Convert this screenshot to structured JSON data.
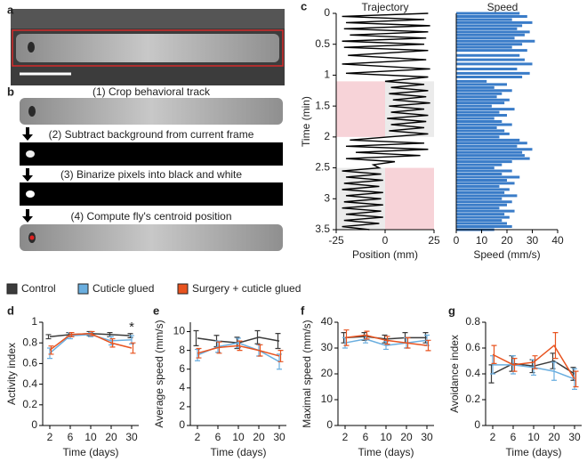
{
  "panel_labels": [
    "a",
    "b",
    "c",
    "d",
    "e",
    "f",
    "g"
  ],
  "steps": [
    "(1) Crop behavioral track",
    "(2) Subtract background from current frame",
    "(3) Binarize pixels into black and white",
    "(4) Compute fly's centroid position"
  ],
  "legend": [
    {
      "name": "Control",
      "color": "#3b3b3b"
    },
    {
      "name": "Cuticle glued",
      "color": "#6aaedf"
    },
    {
      "name": "Surgery + cuticle glued",
      "color": "#e8531f"
    }
  ],
  "chart_data": [
    {
      "type": "trajectory",
      "title": "Trajectory",
      "xlabel": "Position (mm)",
      "ylabel": "Time (min)",
      "color": "#000000",
      "xlim": [
        -25,
        25
      ],
      "xticks": [
        -25,
        0,
        25
      ],
      "ylim": [
        0,
        3.5
      ],
      "yticks": [
        0,
        0.5,
        1,
        1.5,
        2,
        2.5,
        3,
        3.5
      ],
      "shading": [
        {
          "y": [
            1.1,
            2.0
          ],
          "x": [
            -25,
            0
          ],
          "color": "#f7d3d8"
        },
        {
          "y": [
            1.1,
            2.0
          ],
          "x": [
            0,
            25
          ],
          "color": "#ebebeb"
        },
        {
          "y": [
            2.5,
            3.5
          ],
          "x": [
            -25,
            0
          ],
          "color": "#ebebeb"
        },
        {
          "y": [
            2.5,
            3.5
          ],
          "x": [
            0,
            25
          ],
          "color": "#f7d3d8"
        }
      ],
      "y": [
        0,
        0.05,
        0.1,
        0.15,
        0.2,
        0.25,
        0.3,
        0.35,
        0.4,
        0.45,
        0.5,
        0.55,
        0.6,
        0.68,
        0.75,
        0.82,
        0.9,
        0.97,
        1.03,
        1.1,
        1.15,
        1.2,
        1.25,
        1.3,
        1.35,
        1.4,
        1.45,
        1.5,
        1.55,
        1.6,
        1.65,
        1.7,
        1.75,
        1.8,
        1.85,
        1.9,
        1.95,
        2.0,
        2.05,
        2.1,
        2.15,
        2.2,
        2.25,
        2.3,
        2.35,
        2.4,
        2.45,
        2.5,
        2.55,
        2.6,
        2.65,
        2.7,
        2.75,
        2.8,
        2.85,
        2.9,
        2.95,
        3.0,
        3.05,
        3.1,
        3.15,
        3.2,
        3.25,
        3.3,
        3.35,
        3.4,
        3.45,
        3.5
      ],
      "x": [
        22,
        -22,
        20,
        -20,
        23,
        -21,
        22,
        -18,
        21,
        -22,
        20,
        -21,
        22,
        -19,
        21,
        -22,
        23,
        -20,
        22,
        0,
        20,
        3,
        22,
        2,
        21,
        4,
        23,
        2,
        20,
        3,
        22,
        1,
        21,
        3,
        20,
        2,
        22,
        2,
        -18,
        20,
        -20,
        22,
        -15,
        18,
        -20,
        5,
        -6,
        -3,
        -22,
        -2,
        -20,
        -1,
        -21,
        -3,
        -22,
        -1,
        -20,
        -2,
        -21,
        -1,
        -22,
        -2,
        -20,
        -1,
        -21,
        -3,
        -22,
        -8
      ]
    },
    {
      "type": "hbar",
      "title": "Speed",
      "xlabel": "Speed (mm/s)",
      "color": "#3a7cc8",
      "xlim": [
        0,
        40
      ],
      "xticks": [
        0,
        10,
        20,
        30,
        40
      ],
      "values": [
        25,
        28,
        22,
        30,
        26,
        24,
        29,
        27,
        23,
        31,
        26,
        22,
        28,
        25,
        27,
        30,
        24,
        29,
        26,
        12,
        20,
        15,
        22,
        18,
        16,
        21,
        19,
        14,
        23,
        17,
        20,
        15,
        18,
        22,
        16,
        19,
        21,
        17,
        25,
        28,
        24,
        30,
        26,
        27,
        29,
        22,
        18,
        15,
        22,
        18,
        25,
        20,
        23,
        17,
        21,
        19,
        24,
        18,
        22,
        20,
        17,
        23,
        19,
        21,
        18,
        20,
        22,
        15
      ]
    },
    {
      "type": "line",
      "ylabel": "Activity index",
      "xlabel": "Time (days)",
      "categories": [
        2,
        6,
        10,
        20,
        30
      ],
      "annotation": "*",
      "ylim": [
        0,
        1
      ],
      "yticks": [
        0,
        0.2,
        0.4,
        0.6,
        0.8,
        1
      ],
      "series": [
        {
          "values": [
            0.86,
            0.88,
            0.89,
            0.88,
            0.87
          ],
          "errors": [
            0.02,
            0.02,
            0.02,
            0.02,
            0.02
          ]
        },
        {
          "values": [
            0.7,
            0.87,
            0.88,
            0.82,
            0.83
          ],
          "errors": [
            0.05,
            0.03,
            0.02,
            0.04,
            0.04
          ]
        },
        {
          "values": [
            0.73,
            0.88,
            0.89,
            0.8,
            0.75
          ],
          "errors": [
            0.04,
            0.02,
            0.02,
            0.04,
            0.05
          ]
        }
      ]
    },
    {
      "type": "line",
      "ylabel": "Average speed (mm/s)",
      "xlabel": "Time (days)",
      "categories": [
        2,
        6,
        10,
        20,
        30
      ],
      "ylim": [
        0,
        11
      ],
      "yticks": [
        0,
        2,
        4,
        6,
        8,
        10
      ],
      "series": [
        {
          "values": [
            9.3,
            9.0,
            8.8,
            9.4,
            9.0
          ],
          "errors": [
            0.8,
            0.6,
            0.6,
            0.7,
            0.8
          ]
        },
        {
          "values": [
            7.5,
            8.4,
            8.8,
            8.0,
            6.8
          ],
          "errors": [
            0.6,
            0.6,
            0.5,
            0.6,
            0.8
          ]
        },
        {
          "values": [
            7.7,
            8.3,
            8.5,
            8.0,
            7.4
          ],
          "errors": [
            0.5,
            0.6,
            0.5,
            0.6,
            0.6
          ]
        }
      ]
    },
    {
      "type": "line",
      "ylabel": "Maximal speed (mm/s)",
      "xlabel": "Time (days)",
      "categories": [
        2,
        6,
        10,
        20,
        30
      ],
      "ylim": [
        0,
        40
      ],
      "yticks": [
        0,
        10,
        20,
        30,
        40
      ],
      "series": [
        {
          "values": [
            34,
            34.5,
            33.5,
            34,
            34
          ],
          "errors": [
            2,
            1.5,
            1.5,
            2,
            2
          ]
        },
        {
          "values": [
            32,
            33.5,
            31,
            32,
            33
          ],
          "errors": [
            2,
            1.5,
            1.5,
            2,
            2
          ]
        },
        {
          "values": [
            34,
            35,
            33,
            32,
            31
          ],
          "errors": [
            3,
            1.5,
            1.5,
            2,
            2
          ]
        }
      ]
    },
    {
      "type": "line",
      "ylabel": "Avoidance index",
      "xlabel": "Time (days)",
      "categories": [
        2,
        6,
        10,
        20,
        30
      ],
      "ylim": [
        0,
        0.8
      ],
      "yticks": [
        0,
        0.2,
        0.4,
        0.6,
        0.8
      ],
      "series": [
        {
          "values": [
            0.4,
            0.48,
            0.46,
            0.5,
            0.4
          ],
          "errors": [
            0.07,
            0.06,
            0.05,
            0.06,
            0.05
          ]
        },
        {
          "values": [
            0.47,
            0.47,
            0.45,
            0.42,
            0.36
          ],
          "errors": [
            0.07,
            0.07,
            0.06,
            0.07,
            0.08
          ]
        },
        {
          "values": [
            0.55,
            0.47,
            0.49,
            0.62,
            0.36
          ],
          "errors": [
            0.07,
            0.05,
            0.05,
            0.1,
            0.06
          ]
        }
      ]
    }
  ]
}
